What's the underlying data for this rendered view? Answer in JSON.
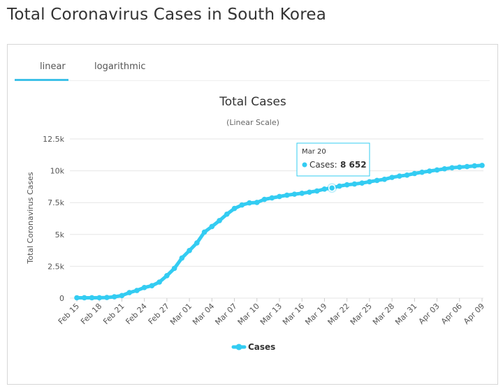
{
  "page": {
    "title": "Total Coronavirus Cases in South Korea"
  },
  "tabs": [
    {
      "label": "linear",
      "active": true
    },
    {
      "label": "logarithmic",
      "active": false
    }
  ],
  "colors": {
    "series": "#33ccf2",
    "accent": "#3ec1e8",
    "grid": "#e6e6e6"
  },
  "chart_data": {
    "type": "line",
    "title": "Total Cases",
    "subtitle": "(Linear Scale)",
    "ylabel": "Total Coronavirus Cases",
    "xlabel": "",
    "ylim": [
      0,
      12500
    ],
    "yticks": [
      0,
      2500,
      5000,
      7500,
      10000,
      12500
    ],
    "ytick_labels": [
      "0",
      "2.5k",
      "5k",
      "7.5k",
      "10k",
      "12.5k"
    ],
    "grid": true,
    "legend_position": "bottom",
    "categories": [
      "Feb 15",
      "Feb 16",
      "Feb 17",
      "Feb 18",
      "Feb 19",
      "Feb 20",
      "Feb 21",
      "Feb 22",
      "Feb 23",
      "Feb 24",
      "Feb 25",
      "Feb 26",
      "Feb 27",
      "Feb 28",
      "Feb 29",
      "Mar 01",
      "Mar 02",
      "Mar 03",
      "Mar 04",
      "Mar 05",
      "Mar 06",
      "Mar 07",
      "Mar 08",
      "Mar 09",
      "Mar 10",
      "Mar 11",
      "Mar 12",
      "Mar 13",
      "Mar 14",
      "Mar 15",
      "Mar 16",
      "Mar 17",
      "Mar 18",
      "Mar 19",
      "Mar 20",
      "Mar 21",
      "Mar 22",
      "Mar 23",
      "Mar 24",
      "Mar 25",
      "Mar 26",
      "Mar 27",
      "Mar 28",
      "Mar 29",
      "Mar 30",
      "Mar 31",
      "Apr 01",
      "Apr 02",
      "Apr 03",
      "Apr 04",
      "Apr 05",
      "Apr 06",
      "Apr 07",
      "Apr 08",
      "Apr 09"
    ],
    "xtick_labels": [
      "Feb 15",
      "Feb 18",
      "Feb 21",
      "Feb 24",
      "Feb 27",
      "Mar 01",
      "Mar 04",
      "Mar 07",
      "Mar 10",
      "Mar 13",
      "Mar 16",
      "Mar 19",
      "Mar 22",
      "Mar 25",
      "Mar 28",
      "Mar 31",
      "Apr 03",
      "Apr 06",
      "Apr 09"
    ],
    "series": [
      {
        "name": "Cases",
        "values": [
          28,
          29,
          30,
          31,
          51,
          104,
          204,
          433,
          602,
          833,
          977,
          1261,
          1766,
          2337,
          3150,
          3736,
          4335,
          5186,
          5621,
          6088,
          6593,
          7041,
          7313,
          7478,
          7513,
          7755,
          7869,
          7979,
          8086,
          8162,
          8236,
          8320,
          8413,
          8565,
          8652,
          8799,
          8897,
          8961,
          9037,
          9137,
          9241,
          9332,
          9478,
          9583,
          9661,
          9786,
          9887,
          9976,
          10062,
          10156,
          10237,
          10284,
          10331,
          10384,
          10423
        ]
      }
    ],
    "tooltip": {
      "date": "Mar 20",
      "label": "Cases:",
      "value": "8 652",
      "index": 34
    }
  }
}
